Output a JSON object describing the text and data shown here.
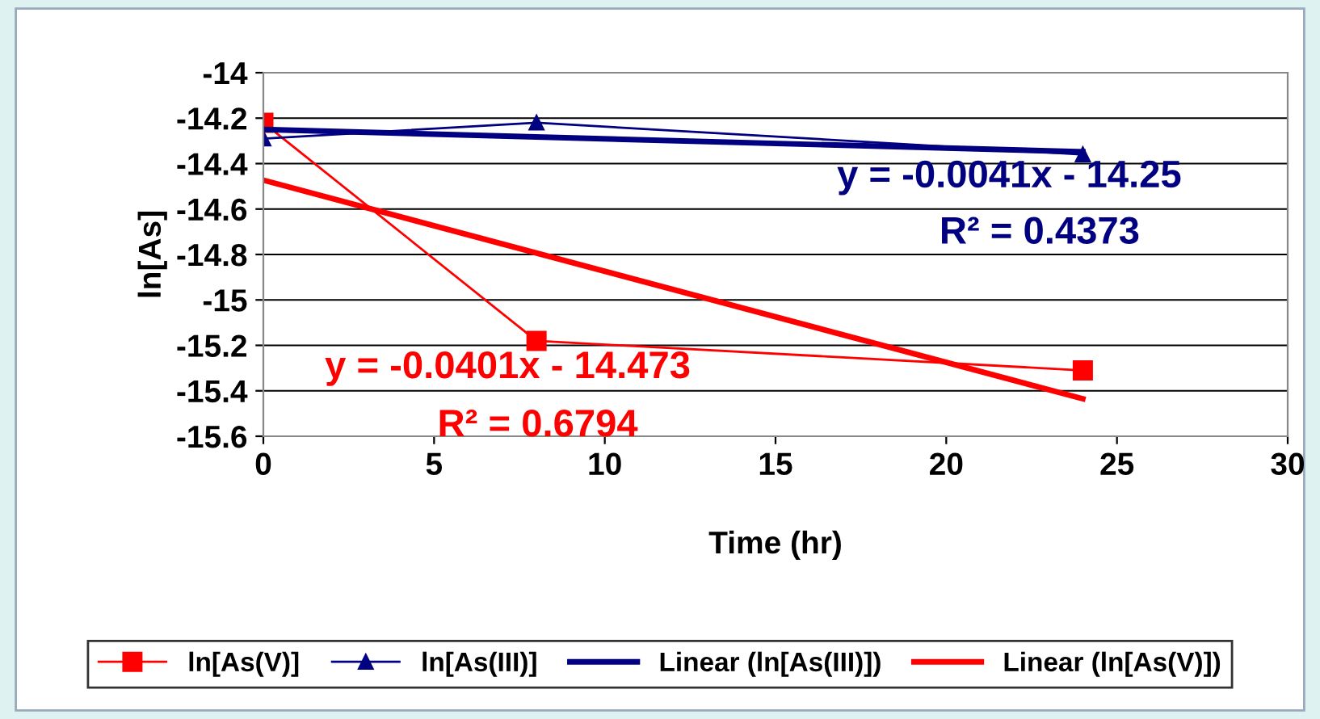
{
  "chart_data": {
    "type": "line",
    "xlabel": "Time (hr)",
    "ylabel": "ln[As]",
    "xlim": [
      0,
      30
    ],
    "xticks": [
      0,
      5,
      10,
      15,
      20,
      25,
      30
    ],
    "ylim": [
      -15.6,
      -14
    ],
    "yticks": [
      -15.6,
      -15.4,
      -15.2,
      -15,
      -14.8,
      -14.6,
      -14.4,
      -14.2,
      -14
    ],
    "grid": "y",
    "legend": "bottom",
    "series": [
      {
        "name": "ln[As(V)]",
        "color": "#ff0000",
        "marker": "square",
        "x": [
          0,
          8,
          24
        ],
        "values": [
          -14.22,
          -15.18,
          -15.31
        ]
      },
      {
        "name": "ln[As(III)]",
        "color": "#000080",
        "marker": "triangle",
        "x": [
          0,
          8,
          24
        ],
        "values": [
          -14.29,
          -14.22,
          -14.36
        ]
      },
      {
        "name": "Linear (ln[As(III)])",
        "color": "#000080",
        "marker": "none",
        "x": [
          0,
          24
        ],
        "values": [
          -14.25,
          -14.348
        ]
      },
      {
        "name": "Linear (ln[As(V)])",
        "color": "#ff0000",
        "marker": "none",
        "x": [
          0,
          24
        ],
        "values": [
          -14.473,
          -15.435
        ]
      }
    ],
    "annotations": [
      "y = -0.0041x - 14.25",
      "R² = 0.4373",
      "y = -0.0401x - 14.473",
      "R² = 0.6794"
    ]
  }
}
